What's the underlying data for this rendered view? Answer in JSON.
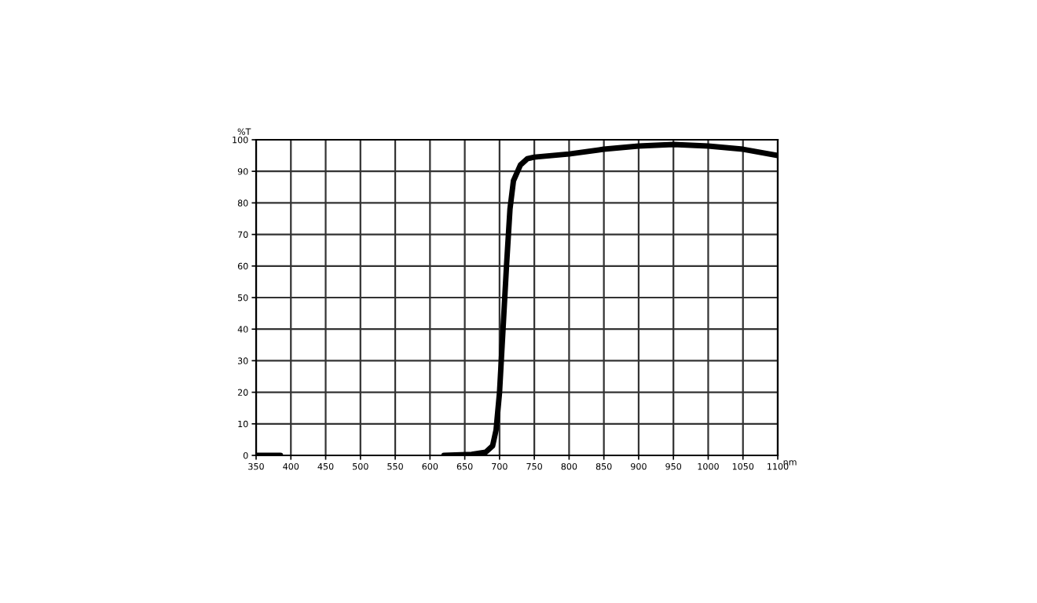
{
  "chart_data": {
    "type": "line",
    "xlabel": "nm",
    "ylabel": "%T",
    "x": [
      350,
      385,
      500,
      620,
      660,
      680,
      690,
      695,
      700,
      705,
      710,
      715,
      720,
      730,
      740,
      750,
      775,
      800,
      850,
      900,
      950,
      1000,
      1050,
      1100
    ],
    "series": [
      {
        "color": "#000000",
        "values": [
          0,
          0,
          null,
          0,
          0.3,
          1,
          3,
          8,
          20,
          40,
          60,
          78,
          87,
          92,
          94,
          94.5,
          95,
          95.5,
          97,
          98,
          98.5,
          98,
          97,
          95
        ]
      }
    ],
    "xlim": [
      350,
      1100
    ],
    "ylim": [
      0,
      100
    ],
    "xticks": [
      350,
      400,
      450,
      500,
      550,
      600,
      650,
      700,
      750,
      800,
      850,
      900,
      950,
      1000,
      1050,
      1100
    ],
    "yticks": [
      0,
      10,
      20,
      30,
      40,
      50,
      60,
      70,
      80,
      90,
      100
    ],
    "grid": true,
    "marker": "none",
    "line_style": "solid"
  }
}
